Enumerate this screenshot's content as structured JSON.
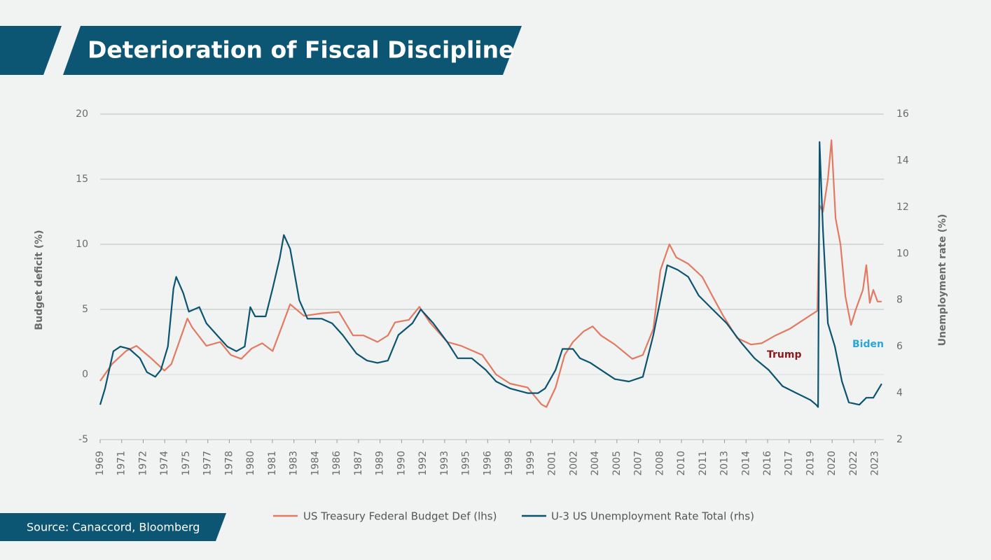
{
  "chart_data": {
    "type": "line",
    "title": "Deterioration of Fiscal Discipline",
    "source": "Source: Canaccord, Bloomberg",
    "ylabel": "Budget deficit (%)",
    "y2label": "Unemployment rate (%)",
    "xlim": [
      1969.5,
      2024.1
    ],
    "ylim": [
      -5,
      20
    ],
    "yticks": [
      -5,
      0,
      5,
      10,
      15,
      20
    ],
    "y2lim": [
      2,
      16
    ],
    "y2ticks": [
      2,
      4,
      6,
      8,
      10,
      12,
      14,
      16
    ],
    "grid": true,
    "xticks": [
      {
        "value": 1969.5,
        "label": "1969"
      },
      {
        "value": 1971.0,
        "label": "1971"
      },
      {
        "value": 1972.5,
        "label": "1972"
      },
      {
        "value": 1974.0,
        "label": "1974"
      },
      {
        "value": 1975.5,
        "label": "1975"
      },
      {
        "value": 1977.0,
        "label": "1977"
      },
      {
        "value": 1978.5,
        "label": "1978"
      },
      {
        "value": 1980.0,
        "label": "1980"
      },
      {
        "value": 1981.5,
        "label": "1981"
      },
      {
        "value": 1983.0,
        "label": "1983"
      },
      {
        "value": 1984.5,
        "label": "1984"
      },
      {
        "value": 1986.0,
        "label": "1986"
      },
      {
        "value": 1987.5,
        "label": "1987"
      },
      {
        "value": 1989.0,
        "label": "1989"
      },
      {
        "value": 1990.5,
        "label": "1990"
      },
      {
        "value": 1992.0,
        "label": "1992"
      },
      {
        "value": 1993.5,
        "label": "1993"
      },
      {
        "value": 1995.0,
        "label": "1995"
      },
      {
        "value": 1996.5,
        "label": "1996"
      },
      {
        "value": 1998.0,
        "label": "1998"
      },
      {
        "value": 1999.5,
        "label": "1999"
      },
      {
        "value": 2001.0,
        "label": "2001"
      },
      {
        "value": 2002.5,
        "label": "2002"
      },
      {
        "value": 2004.0,
        "label": "2004"
      },
      {
        "value": 2005.5,
        "label": "2005"
      },
      {
        "value": 2007.0,
        "label": "2007"
      },
      {
        "value": 2008.5,
        "label": "2008"
      },
      {
        "value": 2010.0,
        "label": "2010"
      },
      {
        "value": 2011.5,
        "label": "2011"
      },
      {
        "value": 2013.0,
        "label": "2013"
      },
      {
        "value": 2014.5,
        "label": "2014"
      },
      {
        "value": 2016.0,
        "label": "2016"
      },
      {
        "value": 2017.5,
        "label": "2017"
      },
      {
        "value": 2019.0,
        "label": "2019"
      },
      {
        "value": 2020.5,
        "label": "2020"
      },
      {
        "value": 2022.0,
        "label": "2022"
      },
      {
        "value": 2023.5,
        "label": "2023"
      }
    ],
    "series": [
      {
        "name": "US Treasury Federal Budget Def (lhs)",
        "color": "#e27a62",
        "x": [
          1969.5,
          1970.33,
          1971.3,
          1972.03,
          1973,
          1973.98,
          1974.46,
          1975.1,
          1975.58,
          1975.92,
          1976.9,
          1977.87,
          1978.6,
          1979.33,
          1980.06,
          1980.79,
          1981.52,
          1982.1,
          1982.74,
          1983.71,
          1984.93,
          1986.14,
          1987.12,
          1987.85,
          1988.82,
          1989.55,
          1990.04,
          1991.01,
          1991.74,
          1992.47,
          1993.68,
          1994.66,
          1996.12,
          1997.09,
          1998.06,
          1999.28,
          2000.25,
          2000.59,
          2001.23,
          2001.86,
          2002.44,
          2003.17,
          2003.81,
          2004.39,
          2005.36,
          2006.58,
          2007.31,
          2008.04,
          2008.53,
          2009.16,
          2009.64,
          2010.47,
          2011.45,
          2012.17,
          2012.91,
          2013.88,
          2014.85,
          2015.58,
          2016.55,
          2017.53,
          2018.5,
          2019.47,
          2019.62,
          2019.86,
          2020.2,
          2020.45,
          2020.74,
          2021.08,
          2021.42,
          2021.81,
          2022.15,
          2022.64,
          2022.88,
          2023.12,
          2023.37,
          2023.66,
          2023.95
        ],
        "values": [
          -0.5,
          0.8,
          1.8,
          2.2,
          1.3,
          0.3,
          0.8,
          2.8,
          4.3,
          3.6,
          2.2,
          2.5,
          1.5,
          1.2,
          2.0,
          2.4,
          1.8,
          3.5,
          5.4,
          4.5,
          4.7,
          4.8,
          3.0,
          3.0,
          2.5,
          3.0,
          4.0,
          4.2,
          5.2,
          4.0,
          2.5,
          2.2,
          1.5,
          0,
          -0.7,
          -1.0,
          -2.3,
          -2.5,
          -1.0,
          1.5,
          2.5,
          3.3,
          3.7,
          3.0,
          2.3,
          1.2,
          1.5,
          3.5,
          8.0,
          10.0,
          9.0,
          8.5,
          7.5,
          6.0,
          4.5,
          2.8,
          2.3,
          2.4,
          3.0,
          3.5,
          4.2,
          4.9,
          13.0,
          12.5,
          15.0,
          18.0,
          12.0,
          10.0,
          6.0,
          3.8,
          5.0,
          6.5,
          8.4,
          5.5,
          6.5,
          5.6,
          5.6
        ]
      },
      {
        "name": "U-3 US Unemployment Rate Total (rhs)",
        "color": "#0b5470",
        "axis": "y2",
        "x": [
          1969.5,
          1969.84,
          1970.42,
          1970.91,
          1971.54,
          1972.27,
          1972.76,
          1973.34,
          1973.73,
          1974.22,
          1974.61,
          1974.8,
          1975.29,
          1975.68,
          1976.41,
          1976.9,
          1977.63,
          1978.36,
          1978.99,
          1979.57,
          1979.96,
          1980.3,
          1981.03,
          1981.52,
          1982.01,
          1982.3,
          1982.74,
          1983.37,
          1983.95,
          1984.93,
          1985.66,
          1986.39,
          1987.36,
          1988.09,
          1988.82,
          1989.55,
          1990.28,
          1991.25,
          1991.84,
          1992.71,
          1993.68,
          1994.41,
          1995.39,
          1996.36,
          1997.09,
          1998.06,
          1999.28,
          2000.01,
          2000.5,
          2001.23,
          2001.71,
          2002.44,
          2002.93,
          2003.66,
          2004.39,
          2005.36,
          2006.34,
          2007.31,
          2008.04,
          2008.53,
          2009.01,
          2009.74,
          2010.47,
          2011.2,
          2012.17,
          2013.15,
          2014.12,
          2015.09,
          2016.07,
          2017.04,
          2018.01,
          2018.99,
          2019.38,
          2019.52,
          2019.62,
          2019.86,
          2020.2,
          2020.69,
          2021.18,
          2021.66,
          2022.39,
          2022.88,
          2023.37,
          2023.95
        ],
        "values": [
          3.5,
          4.2,
          5.8,
          6.0,
          5.9,
          5.5,
          4.9,
          4.7,
          5.0,
          6.0,
          8.5,
          9.0,
          8.3,
          7.5,
          7.7,
          7.0,
          6.5,
          6.0,
          5.8,
          6.0,
          7.7,
          7.3,
          7.3,
          8.5,
          9.8,
          10.8,
          10.2,
          8.0,
          7.2,
          7.2,
          7.0,
          6.5,
          5.7,
          5.4,
          5.3,
          5.4,
          6.5,
          7.0,
          7.6,
          7.0,
          6.2,
          5.5,
          5.5,
          5.0,
          4.5,
          4.2,
          4.0,
          4.0,
          4.2,
          5.0,
          5.9,
          5.9,
          5.5,
          5.3,
          5.0,
          4.6,
          4.5,
          4.7,
          6.5,
          8.0,
          9.5,
          9.3,
          9.0,
          8.2,
          7.6,
          7.0,
          6.2,
          5.5,
          5.0,
          4.3,
          4.0,
          3.7,
          3.5,
          3.4,
          14.8,
          11.0,
          7.0,
          6.0,
          4.5,
          3.6,
          3.5,
          3.8,
          3.8,
          4.4
        ]
      }
    ],
    "annotations": [
      {
        "text": "Trump",
        "color": "#8b1a1a"
      },
      {
        "text": "Biden",
        "color": "#2aa6d6"
      }
    ]
  }
}
